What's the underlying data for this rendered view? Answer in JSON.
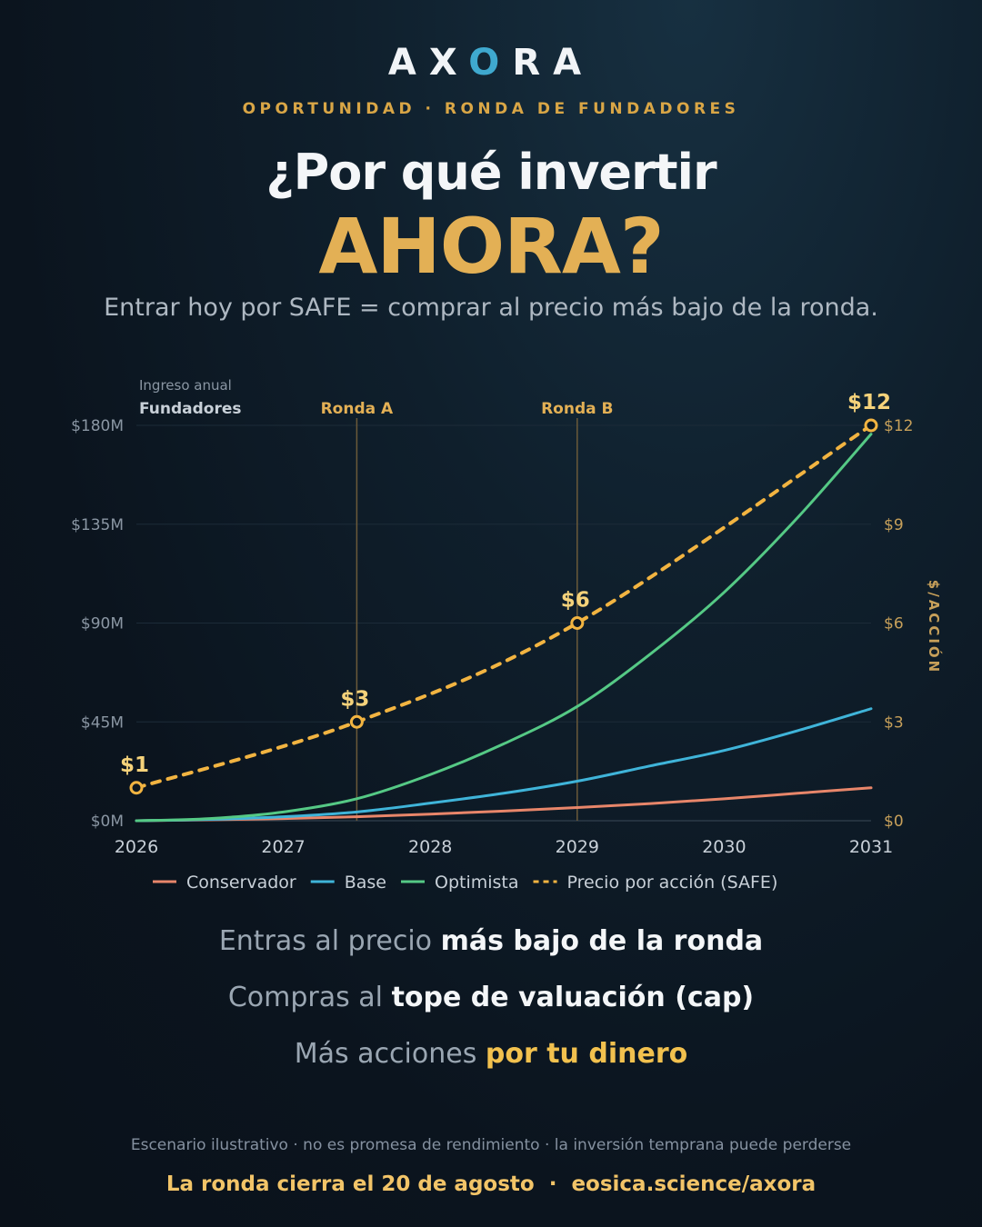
{
  "brand": {
    "pre": "AX",
    "o": "O",
    "post": "RA"
  },
  "kicker": "OPORTUNIDAD · RONDA DE FUNDADORES",
  "headline": {
    "line1": "¿Por qué invertir",
    "line2": "AHORA?"
  },
  "subhead": "Entrar hoy por SAFE = comprar al precio más bajo de la ronda.",
  "chart_data": {
    "type": "line",
    "left_axis_caption": "Ingreso anual",
    "x_ticks": [
      "2026",
      "2027",
      "2028",
      "2029",
      "2030",
      "2031"
    ],
    "xlim": [
      2026,
      2031
    ],
    "y_left": {
      "ticks": [
        "$0M",
        "$45M",
        "$90M",
        "$135M",
        "$180M"
      ],
      "lim": [
        0,
        180
      ],
      "unit": "M USD"
    },
    "y_right": {
      "label": "$/ACCIÓN",
      "ticks": [
        "$0",
        "$3",
        "$6",
        "$9",
        "$12"
      ],
      "lim": [
        0,
        12
      ]
    },
    "rounds": [
      {
        "name": "Fundadores",
        "x": 2026
      },
      {
        "name": "Ronda A",
        "x": 2027.5
      },
      {
        "name": "Ronda B",
        "x": 2029
      }
    ],
    "series": [
      {
        "name": "Conservador",
        "axis": "left",
        "color": "#e8866a",
        "x": [
          2026,
          2026.5,
          2027,
          2027.5,
          2028,
          2028.5,
          2029,
          2029.5,
          2030,
          2030.5,
          2031
        ],
        "values": [
          0,
          0.4,
          1,
          1.8,
          3,
          4.4,
          6,
          7.8,
          10,
          12.5,
          15
        ]
      },
      {
        "name": "Base",
        "axis": "left",
        "color": "#3fb4d9",
        "x": [
          2026,
          2026.5,
          2027,
          2027.5,
          2028,
          2028.5,
          2029,
          2029.5,
          2030,
          2030.5,
          2031
        ],
        "values": [
          0,
          0.6,
          1.8,
          4,
          8,
          12.5,
          18,
          25,
          32,
          41,
          51
        ]
      },
      {
        "name": "Optimista",
        "axis": "left",
        "color": "#55c985",
        "x": [
          2026,
          2026.5,
          2027,
          2027.5,
          2028,
          2028.5,
          2029,
          2029.5,
          2030,
          2030.5,
          2031
        ],
        "values": [
          0,
          1,
          4,
          10,
          21,
          35,
          52,
          76,
          104,
          138,
          176
        ]
      },
      {
        "name": "Precio por acción (SAFE)",
        "axis": "right",
        "color": "#f2b441",
        "dashed": true,
        "x": [
          2026,
          2027.5,
          2029,
          2031
        ],
        "values": [
          1,
          3,
          6,
          12
        ],
        "point_labels": [
          "$1",
          "$3",
          "$6",
          "$12"
        ]
      }
    ],
    "legend": {
      "position": "bottom"
    }
  },
  "benefits": [
    {
      "pre": "Entras al precio ",
      "strong": "más bajo de la ronda"
    },
    {
      "pre": "Compras al ",
      "strong": "tope de valuación (cap)"
    },
    {
      "pre": "Más acciones ",
      "strong": "por tu dinero"
    }
  ],
  "disclaimer": "Escenario ilustrativo · no es promesa de rendimiento · la inversión temprana puede perderse",
  "footer": {
    "deadline": "La ronda cierra el 20 de agosto",
    "separator": "·",
    "url": "eosica.science/axora"
  },
  "colors": {
    "accent_gold": "#e3b055",
    "accent_blue": "#3fa9cf",
    "background": "#0b141e"
  }
}
